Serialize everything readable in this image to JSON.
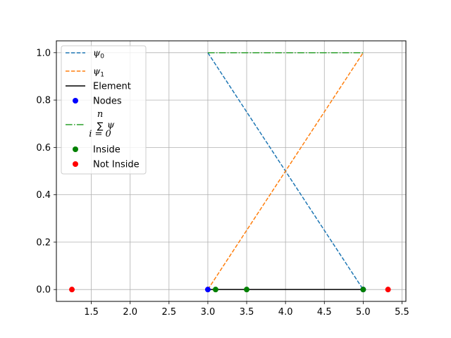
{
  "chart_data": {
    "type": "line",
    "xlim": [
      1.05,
      5.55
    ],
    "ylim": [
      -0.05,
      1.05
    ],
    "x_ticks": [
      1.5,
      2.0,
      2.5,
      3.0,
      3.5,
      4.0,
      4.5,
      5.0,
      5.5
    ],
    "x_tick_labels": [
      "1.5",
      "2.0",
      "2.5",
      "3.0",
      "3.5",
      "4.0",
      "4.5",
      "5.0",
      "5.5"
    ],
    "y_ticks": [
      0.0,
      0.2,
      0.4,
      0.6,
      0.8,
      1.0
    ],
    "y_tick_labels": [
      "0.0",
      "0.2",
      "0.4",
      "0.6",
      "0.8",
      "1.0"
    ],
    "grid": true,
    "legend_position": "top-left",
    "series": [
      {
        "name": "ψ0",
        "kind": "line",
        "style": "dashed",
        "color": "#1f77b4",
        "x": [
          3.0,
          5.0
        ],
        "y": [
          1.0,
          0.0
        ]
      },
      {
        "name": "ψ1",
        "kind": "line",
        "style": "dashed",
        "color": "#ff7f0e",
        "x": [
          3.0,
          5.0
        ],
        "y": [
          0.0,
          1.0
        ]
      },
      {
        "name": "Element",
        "kind": "line",
        "style": "solid",
        "color": "#000000",
        "x": [
          3.0,
          5.0
        ],
        "y": [
          0.0,
          0.0
        ]
      },
      {
        "name": "Nodes",
        "kind": "scatter",
        "color": "#0000ff",
        "x": [
          3.0,
          5.0
        ],
        "y": [
          0.0,
          0.0
        ]
      },
      {
        "name": "∑ψ",
        "kind": "line",
        "style": "dashdot",
        "color": "#2ca02c",
        "x": [
          3.0,
          5.0
        ],
        "y": [
          1.0,
          1.0
        ]
      },
      {
        "name": "Inside",
        "kind": "scatter",
        "color": "#008000",
        "x": [
          3.1,
          3.5,
          5.0
        ],
        "y": [
          0.0,
          0.0,
          0.0
        ]
      },
      {
        "name": "Not Inside",
        "kind": "scatter",
        "color": "#ff0000",
        "x": [
          1.25,
          5.32
        ],
        "y": [
          0.0,
          0.0
        ]
      }
    ],
    "legend": [
      {
        "label": "ψ",
        "sub": "0",
        "math": true
      },
      {
        "label": "ψ",
        "sub": "1",
        "math": true
      },
      {
        "label": "Element",
        "math": false
      },
      {
        "label": "Nodes",
        "math": false
      },
      {
        "label": "ψ",
        "sum_upper": "n",
        "sum_lower": "i = 0",
        "math": "sum"
      },
      {
        "label": "Inside",
        "math": false
      },
      {
        "label": "Not Inside",
        "math": false
      }
    ]
  }
}
